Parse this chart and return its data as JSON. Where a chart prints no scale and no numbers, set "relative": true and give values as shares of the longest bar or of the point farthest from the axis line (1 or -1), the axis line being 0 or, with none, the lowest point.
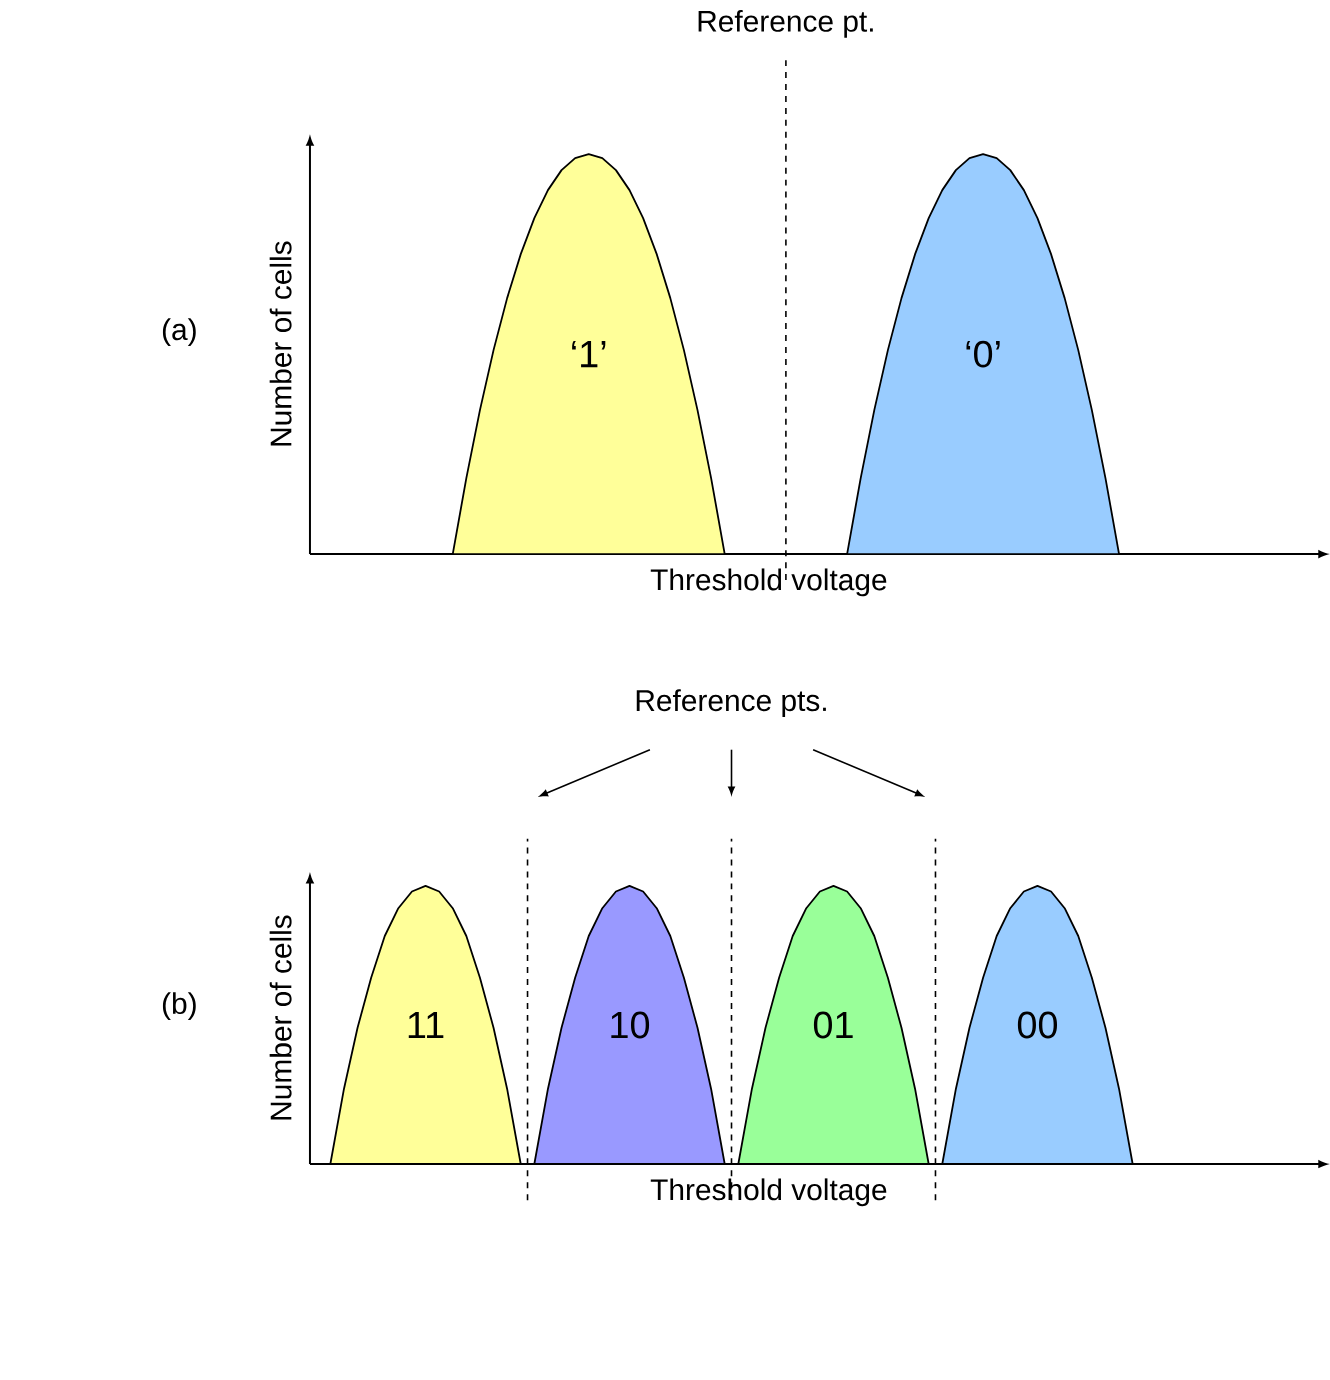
{
  "chart_data": [
    {
      "type": "area",
      "title": "(a)",
      "xlabel": "Threshold voltage",
      "ylabel": "Number of cells",
      "relative": true,
      "tick_labels": false,
      "categories": [
        null,
        null,
        null,
        null,
        null,
        null,
        null,
        null,
        null,
        null,
        null,
        null,
        null,
        null,
        null,
        null,
        null,
        null,
        null,
        null,
        null,
        null,
        null,
        null,
        null,
        null,
        null,
        null,
        null,
        null,
        null,
        null,
        null,
        null,
        null,
        null,
        null,
        null,
        null,
        null,
        null,
        null,
        null,
        null,
        null,
        null,
        null,
        null,
        null,
        null,
        null,
        null,
        null,
        null,
        null,
        null,
        null,
        null,
        null,
        null,
        null,
        null,
        null,
        null,
        null,
        null,
        null,
        null,
        null,
        null,
        null,
        null,
        null,
        null,
        null
      ],
      "series": [
        {
          "color": "#ffff99",
          "values": [
            null,
            null,
            null,
            null,
            null,
            null,
            null,
            null,
            null,
            null,
            0,
            0.19,
            0.36,
            0.51,
            0.64,
            0.75,
            0.84,
            0.91,
            0.96,
            0.99,
            1,
            0.99,
            0.96,
            0.91,
            0.84,
            0.75,
            0.64,
            0.51,
            0.36,
            0.19,
            0,
            null,
            null,
            null,
            null,
            null,
            null,
            null,
            null,
            null,
            null,
            null,
            null,
            null,
            null,
            null,
            null,
            null,
            null,
            null,
            null,
            null,
            null,
            null,
            null,
            null,
            null,
            null,
            null,
            null,
            null,
            null,
            null,
            null,
            null,
            null,
            null,
            null,
            null,
            null,
            null,
            null,
            null,
            null,
            null
          ]
        },
        {
          "color": "#99ccff",
          "values": [
            null,
            null,
            null,
            null,
            null,
            null,
            null,
            null,
            null,
            null,
            null,
            null,
            null,
            null,
            null,
            null,
            null,
            null,
            null,
            null,
            null,
            null,
            null,
            null,
            null,
            null,
            null,
            null,
            null,
            null,
            null,
            null,
            null,
            null,
            null,
            null,
            null,
            null,
            null,
            0,
            0.19,
            0.36,
            0.51,
            0.64,
            0.75,
            0.84,
            0.91,
            0.96,
            0.99,
            1,
            0.99,
            0.96,
            0.91,
            0.84,
            0.75,
            0.64,
            0.51,
            0.36,
            0.19,
            0,
            null,
            null,
            null,
            null,
            null,
            null,
            null,
            null,
            null,
            null,
            null,
            null,
            null,
            null,
            null
          ]
        }
      ],
      "annotations": [
        "Reference pt.",
        "‘1’",
        "‘0’"
      ]
    },
    {
      "type": "area",
      "title": "(b)",
      "xlabel": "Threshold voltage",
      "ylabel": "Number of cells",
      "relative": true,
      "tick_labels": false,
      "categories": [
        null,
        null,
        null,
        null,
        null,
        null,
        null,
        null,
        null,
        null,
        null,
        null,
        null,
        null,
        null,
        null,
        null,
        null,
        null,
        null,
        null,
        null,
        null,
        null,
        null,
        null,
        null,
        null,
        null,
        null,
        null,
        null,
        null,
        null,
        null,
        null,
        null,
        null,
        null,
        null,
        null,
        null,
        null,
        null,
        null,
        null,
        null,
        null,
        null,
        null,
        null,
        null,
        null,
        null,
        null,
        null,
        null,
        null,
        null,
        null,
        null,
        null,
        null,
        null,
        null,
        null,
        null,
        null,
        null,
        null,
        null,
        null,
        null,
        null,
        null
      ],
      "series": [
        {
          "color": "#ffff99",
          "values": [
            null,
            0,
            0.27,
            0.49,
            0.67,
            0.82,
            0.92,
            0.98,
            1,
            0.98,
            0.92,
            0.82,
            0.67,
            0.49,
            0.27,
            0,
            null,
            null,
            null,
            null,
            null,
            null,
            null,
            null,
            null,
            null,
            null,
            null,
            null,
            null,
            null,
            null,
            null,
            null,
            null,
            null,
            null,
            null,
            null,
            null,
            null,
            null,
            null,
            null,
            null,
            null,
            null,
            null,
            null,
            null,
            null,
            null,
            null,
            null,
            null,
            null,
            null,
            null,
            null,
            null,
            null,
            null,
            null,
            null,
            null,
            null,
            null,
            null,
            null,
            null,
            null,
            null,
            null,
            null,
            null
          ]
        },
        {
          "color": "#9999ff",
          "values": [
            null,
            null,
            null,
            null,
            null,
            null,
            null,
            null,
            null,
            null,
            null,
            null,
            null,
            null,
            null,
            null,
            0,
            0.27,
            0.49,
            0.67,
            0.82,
            0.92,
            0.98,
            1,
            0.98,
            0.92,
            0.82,
            0.67,
            0.49,
            0.27,
            0,
            null,
            null,
            null,
            null,
            null,
            null,
            null,
            null,
            null,
            null,
            null,
            null,
            null,
            null,
            null,
            null,
            null,
            null,
            null,
            null,
            null,
            null,
            null,
            null,
            null,
            null,
            null,
            null,
            null,
            null,
            null,
            null,
            null,
            null,
            null,
            null,
            null,
            null,
            null,
            null,
            null,
            null,
            null,
            null
          ]
        },
        {
          "color": "#99ff99",
          "values": [
            null,
            null,
            null,
            null,
            null,
            null,
            null,
            null,
            null,
            null,
            null,
            null,
            null,
            null,
            null,
            null,
            null,
            null,
            null,
            null,
            null,
            null,
            null,
            null,
            null,
            null,
            null,
            null,
            null,
            null,
            null,
            0,
            0.27,
            0.49,
            0.67,
            0.82,
            0.92,
            0.98,
            1,
            0.98,
            0.92,
            0.82,
            0.67,
            0.49,
            0.27,
            0,
            null,
            null,
            null,
            null,
            null,
            null,
            null,
            null,
            null,
            null,
            null,
            null,
            null,
            null,
            null,
            null,
            null,
            null,
            null,
            null,
            null,
            null,
            null,
            null,
            null,
            null,
            null,
            null,
            null
          ]
        },
        {
          "color": "#99ccff",
          "values": [
            null,
            null,
            null,
            null,
            null,
            null,
            null,
            null,
            null,
            null,
            null,
            null,
            null,
            null,
            null,
            null,
            null,
            null,
            null,
            null,
            null,
            null,
            null,
            null,
            null,
            null,
            null,
            null,
            null,
            null,
            null,
            null,
            null,
            null,
            null,
            null,
            null,
            null,
            null,
            null,
            null,
            null,
            null,
            null,
            null,
            null,
            0,
            0.27,
            0.49,
            0.67,
            0.82,
            0.92,
            0.98,
            1,
            0.98,
            0.92,
            0.82,
            0.67,
            0.49,
            0.27,
            0,
            null,
            null,
            null,
            null,
            null,
            null,
            null,
            null,
            null,
            null,
            null,
            null,
            null,
            null
          ]
        }
      ],
      "annotations": [
        "Reference pts.",
        "11",
        "10",
        "01",
        "00"
      ]
    }
  ]
}
